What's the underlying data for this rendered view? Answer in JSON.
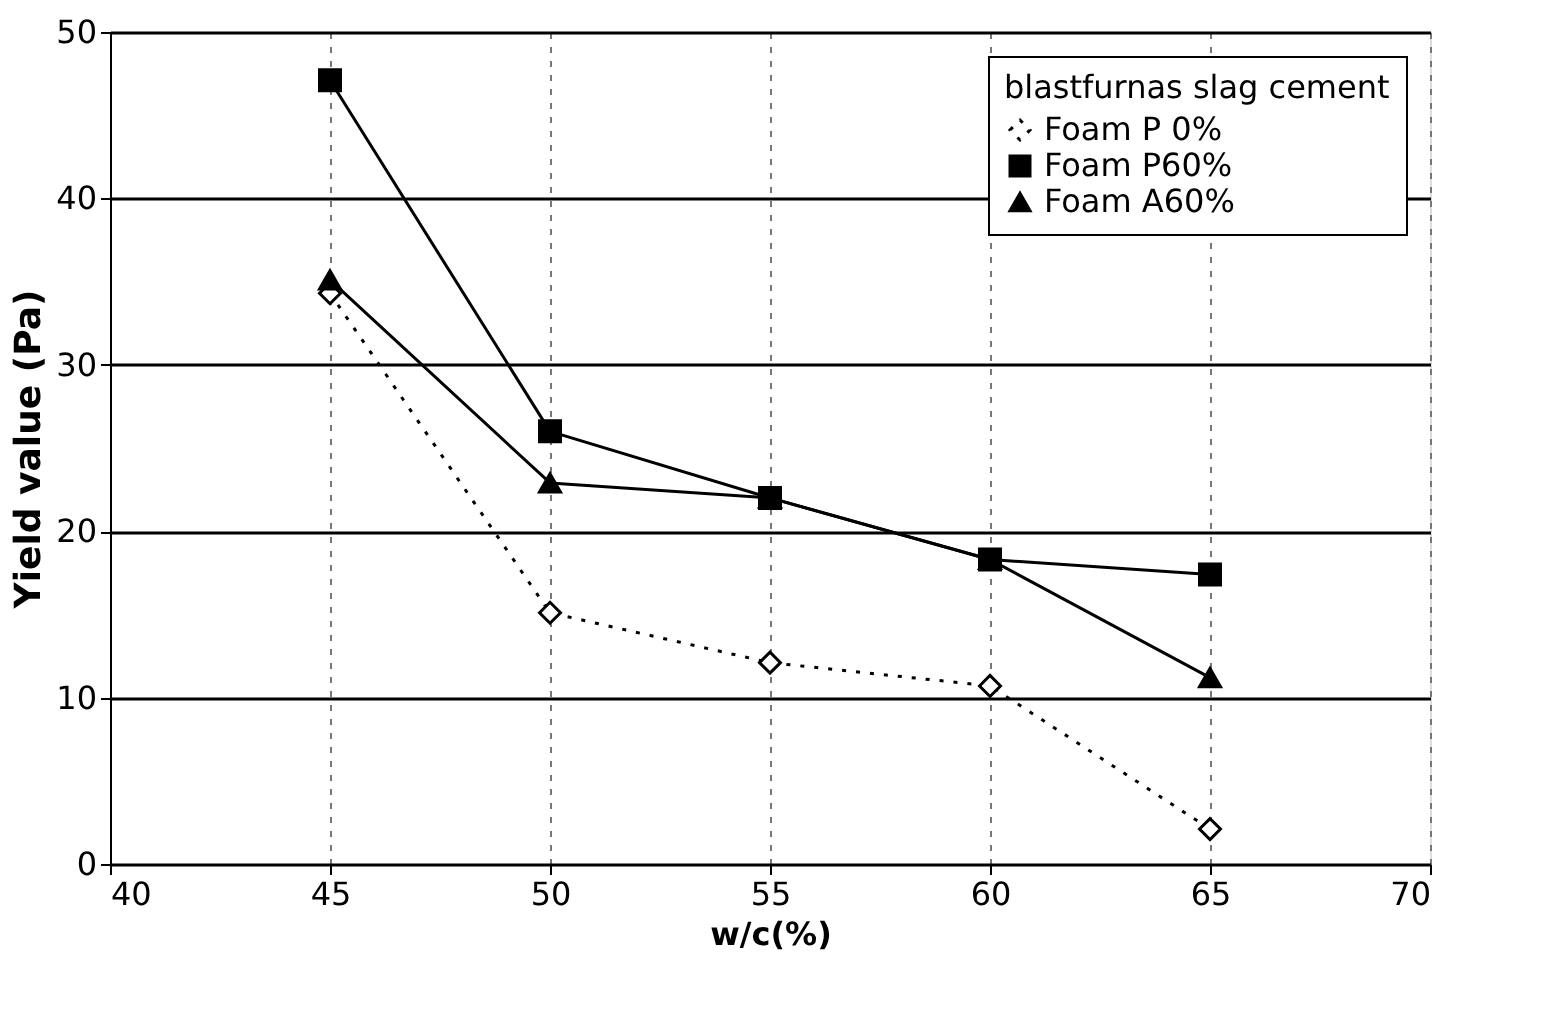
{
  "chart_data": {
    "type": "line",
    "xlabel": "w/c(%)",
    "ylabel": "Yield value (Pa)",
    "legend_title": "blastfurnas slag cement",
    "x": [
      45,
      50,
      55,
      60,
      65
    ],
    "series": [
      {
        "name": "Foam P 0%",
        "color": "#000000",
        "values": [
          34.3,
          15.1,
          12.1,
          10.7,
          2.1
        ],
        "marker": "diamond",
        "line_style": "dotted"
      },
      {
        "name": "Foam P60%",
        "color": "#000000",
        "values": [
          47.1,
          26.0,
          22.0,
          18.3,
          17.4
        ],
        "marker": "square",
        "line_style": "solid"
      },
      {
        "name": "Foam A60%",
        "color": "#000000",
        "values": [
          35.1,
          22.9,
          22.0,
          18.3,
          11.2
        ],
        "marker": "triangle",
        "line_style": "solid"
      }
    ],
    "xlim": [
      40,
      70
    ],
    "xticks": [
      40,
      45,
      50,
      55,
      60,
      65,
      70
    ],
    "ylim": [
      0,
      50
    ],
    "yticks": [
      0,
      10,
      20,
      30,
      40,
      50
    ],
    "grid": true,
    "legend": "top right"
  }
}
